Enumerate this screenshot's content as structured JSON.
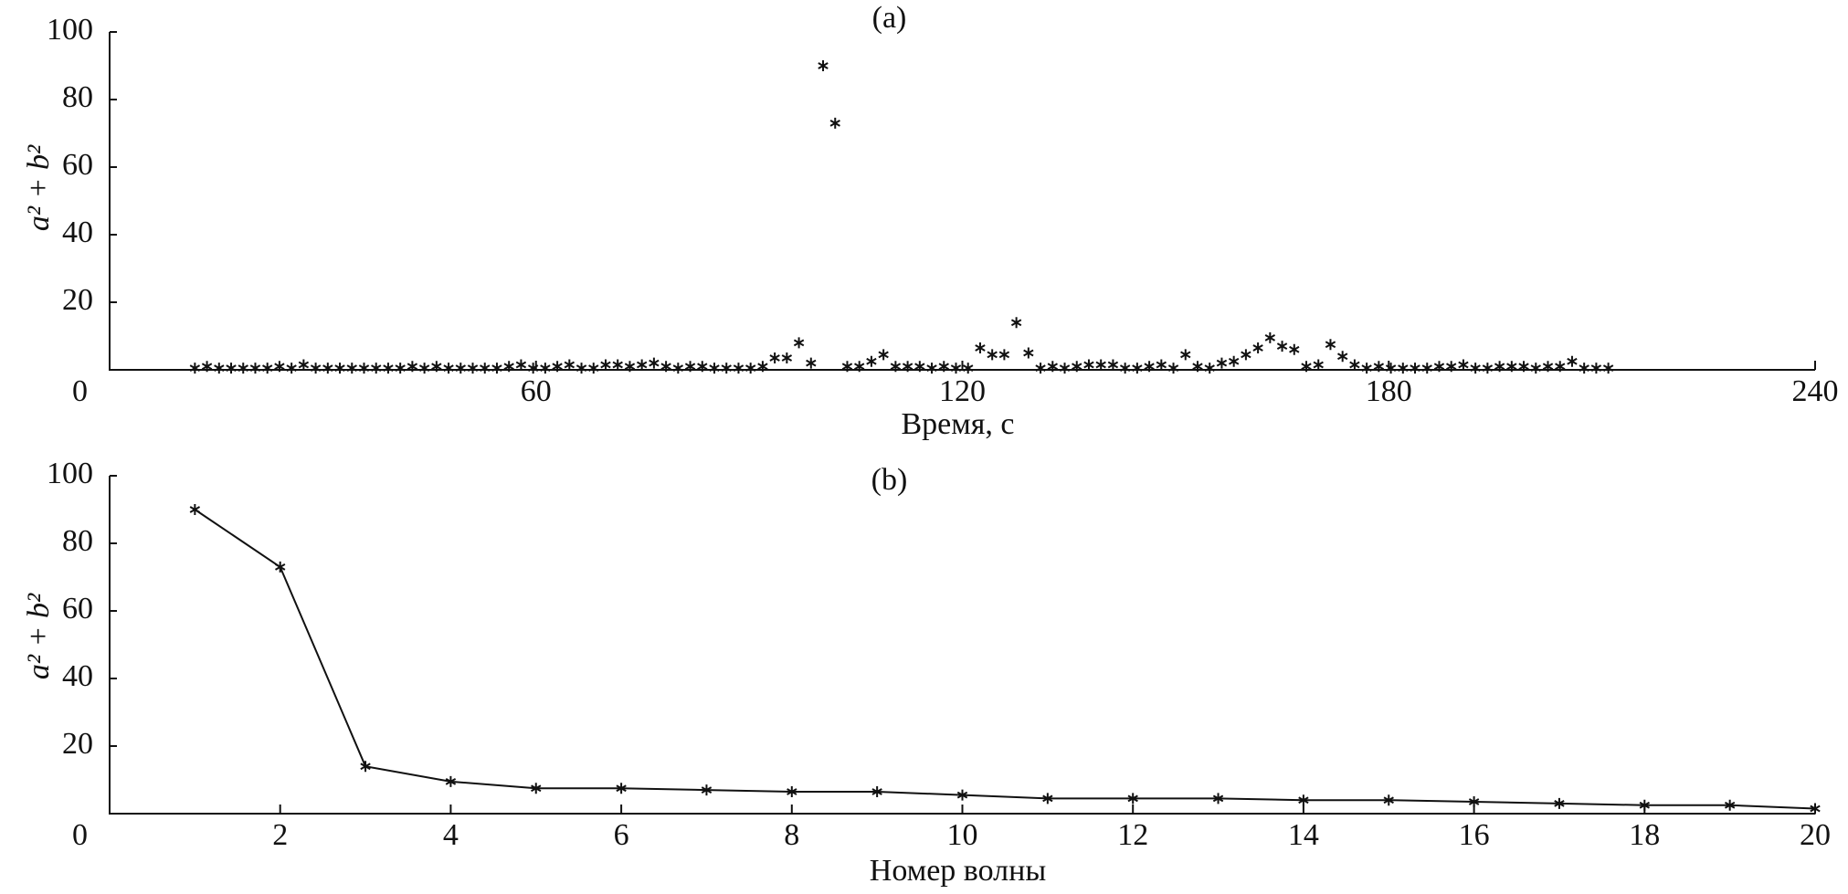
{
  "chart_data": [
    {
      "type": "scatter",
      "title": "(a)",
      "x_label": "Время, с",
      "y_label": "a² + b²",
      "color": "#111111",
      "x": [
        12,
        13.7,
        15.4,
        17.1,
        18.8,
        20.5,
        22.2,
        23.9,
        25.6,
        27.3,
        29,
        30.7,
        32.4,
        34.1,
        35.8,
        37.5,
        39.2,
        40.9,
        42.6,
        44.3,
        46,
        47.7,
        49.4,
        51.1,
        52.8,
        54.5,
        56.2,
        57.9,
        59.6,
        61.3,
        63,
        64.7,
        66.4,
        68.1,
        69.8,
        71.5,
        73.2,
        74.9,
        76.6,
        78.3,
        80,
        81.7,
        83.4,
        85.1,
        86.8,
        88.5,
        90.2,
        91.9,
        93.6,
        95.3,
        97,
        98.7,
        100.4,
        102.1,
        103.8,
        105.5,
        107.2,
        108.9,
        110.6,
        112.3,
        114,
        115.7,
        117.4,
        119.1,
        120.8,
        122.5,
        124.2,
        125.9,
        127.6,
        129.3,
        131,
        132.7,
        134.4,
        136.1,
        137.8,
        139.5,
        141.2,
        142.9,
        144.6,
        146.3,
        148,
        149.7,
        151.4,
        153.1,
        154.8,
        156.5,
        158.2,
        159.9,
        161.6,
        163.3,
        165,
        166.7,
        168.4,
        170.1,
        171.8,
        173.5,
        175.2,
        176.9,
        178.6,
        180.3,
        182,
        183.7,
        185.4,
        187.1,
        188.8,
        190.5,
        192.2,
        193.9,
        195.6,
        197.3,
        199,
        200.7,
        202.4,
        204.1,
        205.8,
        207.5,
        209.2,
        210.9
      ],
      "values": [
        0.5,
        1,
        0.5,
        0.5,
        0.5,
        0.5,
        0.5,
        1,
        0.5,
        1.5,
        0.5,
        0.5,
        0.5,
        0.5,
        0.5,
        0.5,
        0.5,
        0.5,
        1,
        0.5,
        1,
        0.5,
        0.5,
        0.5,
        0.5,
        0.5,
        1,
        1.5,
        0.5,
        0.5,
        1,
        1.5,
        0.5,
        0.5,
        1.5,
        1.5,
        1,
        1.5,
        2,
        1,
        0.5,
        1,
        1,
        0.5,
        0.5,
        0.5,
        0.5,
        1,
        3.5,
        3.5,
        8,
        2,
        90,
        73,
        1,
        1,
        2.5,
        4.5,
        1,
        1,
        1,
        0.5,
        1,
        0.5,
        0.5,
        6.5,
        4.5,
        4.5,
        14,
        5,
        0.5,
        1,
        0.5,
        1,
        1.5,
        1.5,
        1.5,
        0.5,
        0.5,
        1,
        1.5,
        0.5,
        4.5,
        1,
        0.5,
        2,
        2.5,
        4.5,
        6.5,
        9.5,
        7,
        6,
        1,
        1.5,
        7.5,
        4,
        1.5,
        0.5,
        1,
        0.5,
        0.5,
        0.5,
        0.5,
        1,
        1,
        1.5,
        0.5,
        0.5,
        1,
        1,
        1,
        0.5,
        1,
        1,
        2.5,
        0.5,
        0.5,
        0.5
      ],
      "xlim": [
        0,
        240
      ],
      "xticks": [
        0,
        60,
        120,
        180,
        240
      ],
      "ylim": [
        0,
        100
      ],
      "yticks": [
        20,
        40,
        60,
        80,
        100
      ],
      "grid": false
    },
    {
      "type": "line",
      "title": "(b)",
      "x_label": "Номер волны",
      "y_label": "a² + b²",
      "color": "#111111",
      "x": [
        1,
        2,
        3,
        4,
        5,
        6,
        7,
        8,
        9,
        10,
        11,
        12,
        13,
        14,
        15,
        16,
        17,
        18,
        19,
        20
      ],
      "values": [
        90,
        73,
        14,
        9.5,
        7.5,
        7.5,
        7,
        6.5,
        6.5,
        5.5,
        4.5,
        4.5,
        4.5,
        4,
        4,
        3.5,
        3,
        2.5,
        2.5,
        1.5
      ],
      "xlim": [
        0,
        20
      ],
      "xticks": [
        0,
        2,
        4,
        6,
        8,
        10,
        12,
        14,
        16,
        18,
        20
      ],
      "ylim": [
        0,
        100
      ],
      "yticks": [
        20,
        40,
        60,
        80,
        100
      ],
      "grid": false
    }
  ]
}
